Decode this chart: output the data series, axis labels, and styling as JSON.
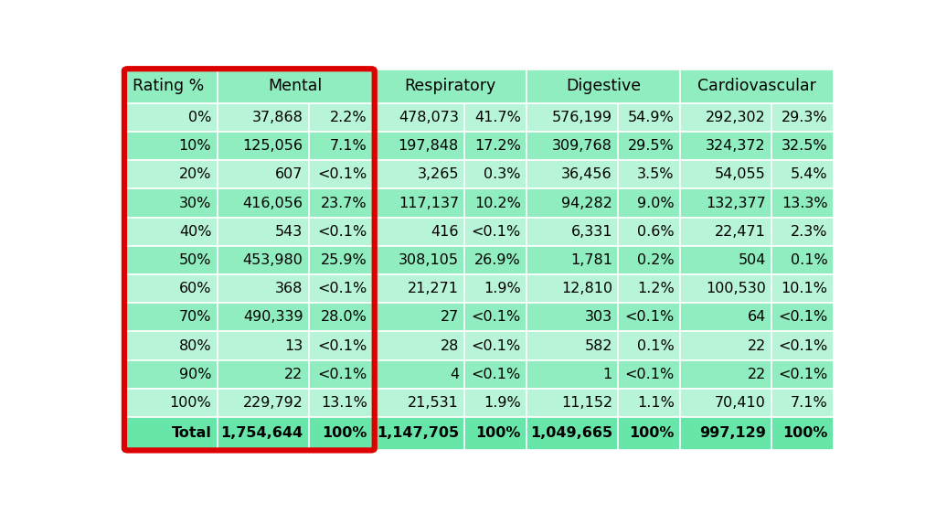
{
  "rows": [
    [
      "0%",
      "37,868",
      "2.2%",
      "478,073",
      "41.7%",
      "576,199",
      "54.9%",
      "292,302",
      "29.3%"
    ],
    [
      "10%",
      "125,056",
      "7.1%",
      "197,848",
      "17.2%",
      "309,768",
      "29.5%",
      "324,372",
      "32.5%"
    ],
    [
      "20%",
      "607",
      "<0.1%",
      "3,265",
      "0.3%",
      "36,456",
      "3.5%",
      "54,055",
      "5.4%"
    ],
    [
      "30%",
      "416,056",
      "23.7%",
      "117,137",
      "10.2%",
      "94,282",
      "9.0%",
      "132,377",
      "13.3%"
    ],
    [
      "40%",
      "543",
      "<0.1%",
      "416",
      "<0.1%",
      "6,331",
      "0.6%",
      "22,471",
      "2.3%"
    ],
    [
      "50%",
      "453,980",
      "25.9%",
      "308,105",
      "26.9%",
      "1,781",
      "0.2%",
      "504",
      "0.1%"
    ],
    [
      "60%",
      "368",
      "<0.1%",
      "21,271",
      "1.9%",
      "12,810",
      "1.2%",
      "100,530",
      "10.1%"
    ],
    [
      "70%",
      "490,339",
      "28.0%",
      "27",
      "<0.1%",
      "303",
      "<0.1%",
      "64",
      "<0.1%"
    ],
    [
      "80%",
      "13",
      "<0.1%",
      "28",
      "<0.1%",
      "582",
      "0.1%",
      "22",
      "<0.1%"
    ],
    [
      "90%",
      "22",
      "<0.1%",
      "4",
      "<0.1%",
      "1",
      "<0.1%",
      "22",
      "<0.1%"
    ],
    [
      "100%",
      "229,792",
      "13.1%",
      "21,531",
      "1.9%",
      "11,152",
      "1.1%",
      "70,410",
      "7.1%"
    ]
  ],
  "total_row": [
    "Total",
    "1,754,644",
    "100%",
    "1,147,705",
    "100%",
    "1,049,665",
    "100%",
    "997,129",
    "100%"
  ],
  "col_headers": [
    "Rating %",
    "Mental",
    "",
    "Respiratory",
    "",
    "Digestive",
    "",
    "Cardiovascular",
    ""
  ],
  "cell_bg_light": "#b8f5d8",
  "cell_bg_dark": "#90edc0",
  "header_bg": "#90edc0",
  "total_bg": "#68e5a8",
  "border_color": "#ffffff",
  "red_border_color": "#dd0000",
  "outer_bg": "#ffffff",
  "font_size": 11.5,
  "header_font_size": 12.5
}
